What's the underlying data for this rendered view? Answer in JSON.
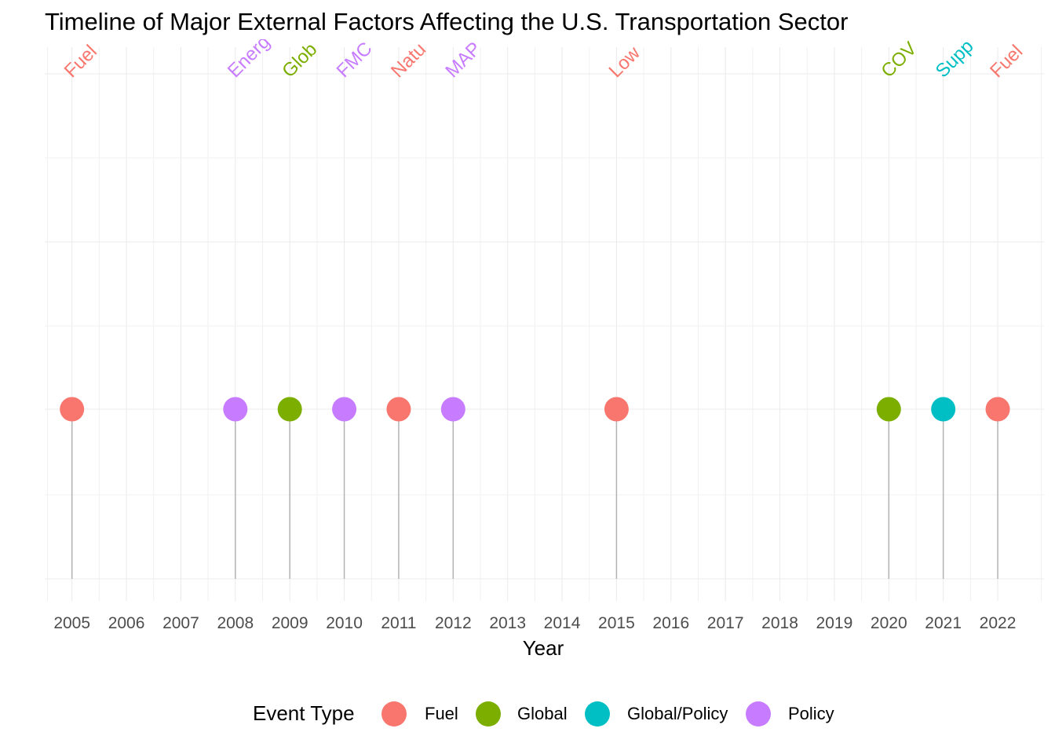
{
  "chart_data": {
    "type": "scatter",
    "title": "Timeline of Major External Factors Affecting the U.S. Transportation Sector",
    "xlabel": "Year",
    "ylabel": "",
    "xlim": [
      2004.5,
      2022.85
    ],
    "x_ticks": [
      2005,
      2006,
      2007,
      2008,
      2009,
      2010,
      2011,
      2012,
      2013,
      2014,
      2015,
      2016,
      2017,
      2018,
      2019,
      2020,
      2021,
      2022
    ],
    "grid": true,
    "legend": {
      "title": "Event Type",
      "position": "bottom",
      "entries": [
        {
          "name": "Fuel",
          "color": "#F8766D"
        },
        {
          "name": "Global",
          "color": "#7CAE00"
        },
        {
          "name": "Global/Policy",
          "color": "#00BFC4"
        },
        {
          "name": "Policy",
          "color": "#C77CFF"
        }
      ]
    },
    "points": [
      {
        "year": 2005,
        "type": "Fuel",
        "label": "Fuel"
      },
      {
        "year": 2008,
        "type": "Policy",
        "label": "Energ"
      },
      {
        "year": 2009,
        "type": "Global",
        "label": "Glob"
      },
      {
        "year": 2010,
        "type": "Policy",
        "label": "FMC"
      },
      {
        "year": 2011,
        "type": "Fuel",
        "label": "Natu"
      },
      {
        "year": 2012,
        "type": "Policy",
        "label": "MAP"
      },
      {
        "year": 2015,
        "type": "Fuel",
        "label": "Low"
      },
      {
        "year": 2020,
        "type": "Global",
        "label": "COV"
      },
      {
        "year": 2021,
        "type": "Global/Policy",
        "label": "Supp"
      },
      {
        "year": 2022,
        "type": "Fuel",
        "label": "Fuel"
      }
    ]
  }
}
